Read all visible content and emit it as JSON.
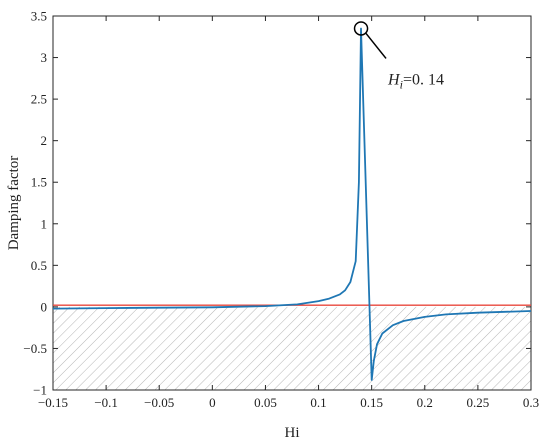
{
  "chart_data": {
    "type": "line",
    "title": "",
    "xlabel": "Hi",
    "ylabel": "Damping factor",
    "xlim": [
      -0.15,
      0.3
    ],
    "ylim": [
      -1,
      3.5
    ],
    "xticks": [
      -0.15,
      -0.1,
      -0.05,
      0,
      0.05,
      0.1,
      0.15,
      0.2,
      0.25,
      0.3
    ],
    "xtick_labels": [
      "−0.15",
      "−0.1",
      "−0.05",
      "0",
      "0.05",
      "0.1",
      "0.15",
      "0.2",
      "0.25",
      "0.3"
    ],
    "yticks": [
      -1,
      -0.5,
      0,
      0.5,
      1,
      1.5,
      2,
      2.5,
      3,
      3.5
    ],
    "ytick_labels": [
      "−1",
      "−0.5",
      "0",
      "0.5",
      "1",
      "1.5",
      "2",
      "2.5",
      "3",
      "3.5"
    ],
    "grid": false,
    "series": [
      {
        "color": "#1f77b4",
        "x": [
          -0.15,
          -0.1,
          -0.05,
          0.0,
          0.05,
          0.08,
          0.1,
          0.11,
          0.12,
          0.125,
          0.13,
          0.135,
          0.138,
          0.14,
          0.148,
          0.15,
          0.152,
          0.155,
          0.16,
          0.17,
          0.18,
          0.2,
          0.22,
          0.25,
          0.3
        ],
        "y": [
          -0.02,
          -0.015,
          -0.01,
          -0.005,
          0.01,
          0.03,
          0.07,
          0.1,
          0.15,
          0.2,
          0.3,
          0.55,
          1.5,
          3.35,
          0.0,
          -0.88,
          -0.65,
          -0.45,
          -0.32,
          -0.22,
          -0.17,
          -0.12,
          -0.09,
          -0.07,
          -0.05
        ]
      },
      {
        "color": "#e8473c",
        "x": [
          -0.15,
          0.3
        ],
        "y": [
          0.02,
          0.02
        ]
      }
    ],
    "shaded_region": {
      "y_from": -1,
      "y_to": 0,
      "pattern": "diagonal-hatch"
    },
    "annotation": {
      "text_main": "H",
      "text_sub": "i",
      "text_rest": "=0. 14",
      "point_x": 0.14,
      "point_y": 3.35
    }
  }
}
